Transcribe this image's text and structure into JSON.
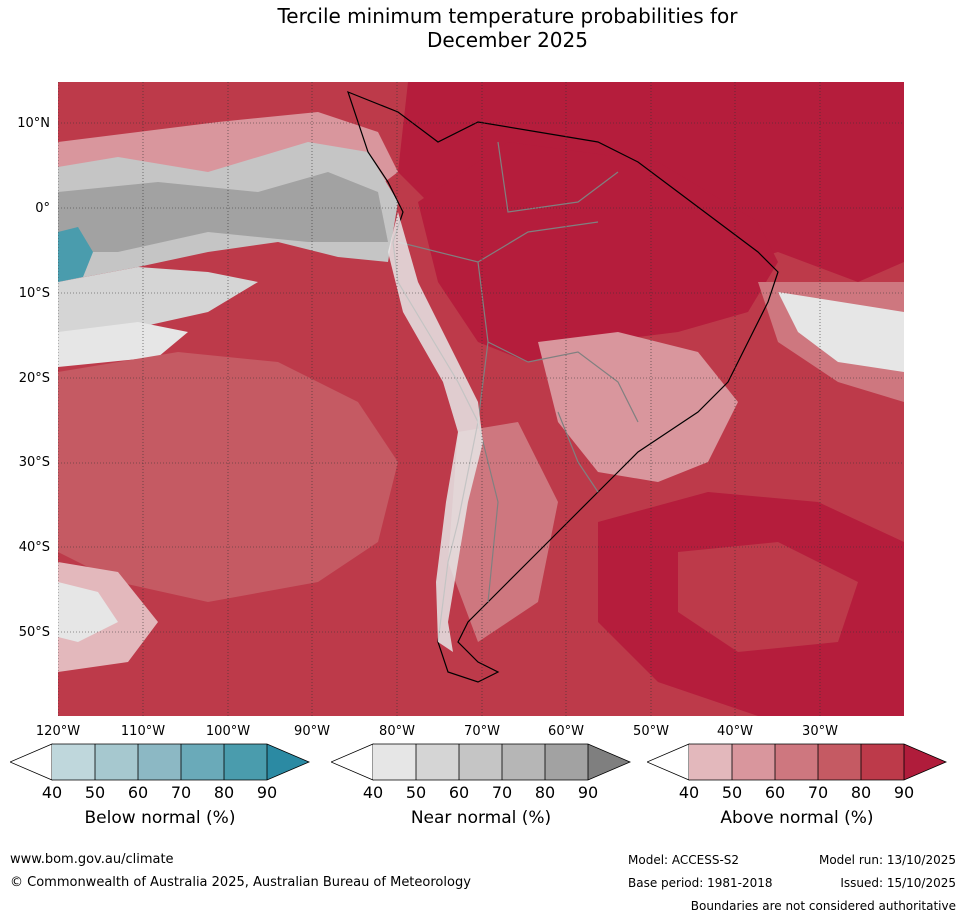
{
  "title": {
    "line1": "Tercile minimum temperature probabilities for",
    "line2": "December 2025"
  },
  "map": {
    "lat_labels": [
      "10°N",
      "0°",
      "10°S",
      "20°S",
      "30°S",
      "40°S",
      "50°S"
    ],
    "lon_labels": [
      "120°W",
      "110°W",
      "100°W",
      "90°W",
      "80°W",
      "70°W",
      "60°W",
      "50°W",
      "40°W",
      "30°W"
    ]
  },
  "colorbars": [
    {
      "title": "Below normal (%)",
      "ticks": [
        "40",
        "50",
        "60",
        "70",
        "80",
        "90"
      ],
      "colors": [
        "#ffffff",
        "#bfd7dc",
        "#a6c8cf",
        "#8cb8c4",
        "#6aaab9",
        "#4a9cad",
        "#2b8aa3"
      ]
    },
    {
      "title": "Near normal (%)",
      "ticks": [
        "40",
        "50",
        "60",
        "70",
        "80",
        "90"
      ],
      "colors": [
        "#ffffff",
        "#e6e6e6",
        "#d5d5d5",
        "#c5c5c5",
        "#b6b6b6",
        "#a2a2a2",
        "#7f7f7f"
      ]
    },
    {
      "title": "Above normal (%)",
      "ticks": [
        "40",
        "50",
        "60",
        "70",
        "80",
        "90"
      ],
      "colors": [
        "#ffffff",
        "#e3b8bc",
        "#d9969d",
        "#ce777f",
        "#c55a63",
        "#bd3a4a",
        "#b01c3b"
      ]
    }
  ],
  "palette": {
    "above_90": "#b51d3c",
    "above_80": "#bd3a4a",
    "above_70": "#c55a63",
    "above_60": "#ce777f",
    "above_50": "#d9969d",
    "above_40": "#e3b8bc",
    "near_40": "#e6e6e6",
    "near_50": "#d5d5d5",
    "near_60": "#c5c5c5",
    "near_80": "#a2a2a2",
    "below_80": "#4a9cad"
  },
  "footer": {
    "website": "www.bom.gov.au/climate",
    "copyright": "© Commonwealth of Australia 2025, Australian Bureau of Meteorology",
    "model": "Model: ACCESS-S2",
    "model_run": "Model run: 13/10/2025",
    "base_period": "Base period: 1981-2018",
    "issued": "Issued: 15/10/2025",
    "disclaimer": "Boundaries are not considered authoritative"
  }
}
